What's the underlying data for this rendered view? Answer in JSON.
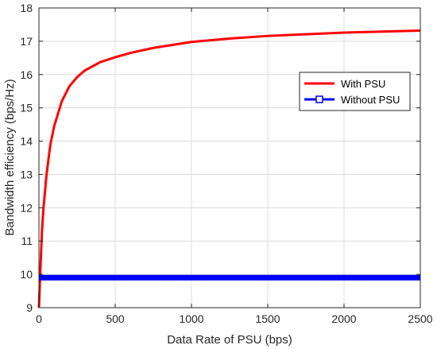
{
  "chart_data": {
    "type": "line",
    "xlabel": "Data Rate of PSU (bps)",
    "ylabel": "Bandwidth efficiency (bps/Hz)",
    "xlim": [
      0,
      2500
    ],
    "ylim": [
      9,
      18
    ],
    "xticks": [
      0,
      500,
      1000,
      1500,
      2000,
      2500
    ],
    "yticks": [
      9,
      10,
      11,
      12,
      13,
      14,
      15,
      16,
      17,
      18
    ],
    "grid": true,
    "legend_position": "upper-right",
    "series": [
      {
        "name": "With PSU",
        "color": "#ff0000",
        "marker": "none",
        "x": [
          0,
          5,
          10,
          20,
          30,
          50,
          75,
          100,
          150,
          200,
          250,
          300,
          400,
          500,
          600,
          750,
          1000,
          1250,
          1500,
          1750,
          2000,
          2250,
          2500
        ],
        "values": [
          9.0,
          9.6,
          10.2,
          11.3,
          12.0,
          13.0,
          13.9,
          14.45,
          15.2,
          15.65,
          15.92,
          16.12,
          16.37,
          16.52,
          16.65,
          16.8,
          16.98,
          17.08,
          17.16,
          17.21,
          17.26,
          17.29,
          17.32
        ]
      },
      {
        "name": "Without PSU",
        "color": "#0000ff",
        "marker": "square",
        "x": [
          0,
          2500
        ],
        "values": [
          9.9,
          9.9
        ]
      }
    ]
  }
}
